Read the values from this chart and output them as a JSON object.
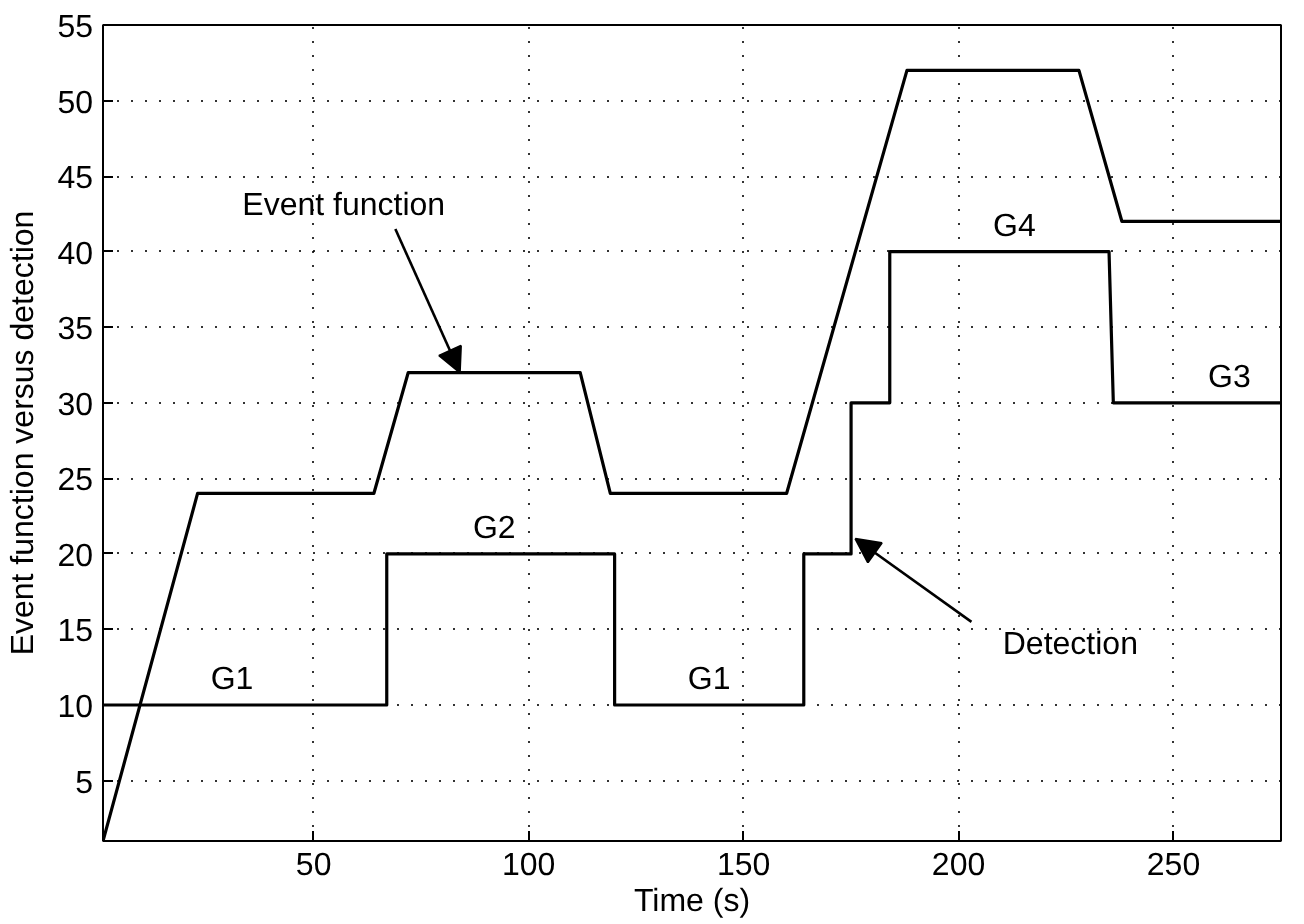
{
  "chart_data": {
    "type": "line",
    "xlabel": "Time (s)",
    "ylabel": "Event function versus detection",
    "xlim": [
      1,
      275
    ],
    "ylim": [
      1,
      55
    ],
    "xticks": [
      50,
      100,
      150,
      200,
      250
    ],
    "yticks": [
      5,
      10,
      15,
      20,
      25,
      30,
      35,
      40,
      45,
      50,
      55
    ],
    "grid": true,
    "marker": "none",
    "line_style": "solid",
    "series": [
      {
        "color": "#000000",
        "x": [
          1,
          23,
          64,
          72,
          112,
          119,
          160,
          188,
          228,
          238,
          275
        ],
        "values": [
          1,
          24,
          24,
          32,
          32,
          24,
          24,
          52,
          52,
          42,
          42
        ]
      },
      {
        "color": "#000000",
        "x": [
          1,
          67,
          67,
          120,
          120,
          164,
          164,
          175,
          175,
          184,
          184,
          235,
          236,
          275
        ],
        "values": [
          10,
          10,
          20,
          20,
          10,
          10,
          20,
          20,
          30,
          30,
          40,
          40,
          30,
          30
        ]
      }
    ],
    "annotations": [
      {
        "text": "G1",
        "x": 31,
        "y": 10
      },
      {
        "text": "G2",
        "x": 92,
        "y": 20
      },
      {
        "text": "G1",
        "x": 142,
        "y": 10
      },
      {
        "text": "G4",
        "x": 213,
        "y": 40
      },
      {
        "text": "G3",
        "x": 263,
        "y": 30
      },
      {
        "text": "Event function",
        "x": 84,
        "y": 32
      },
      {
        "text": "Detection",
        "x": 176,
        "y": 21
      }
    ]
  }
}
